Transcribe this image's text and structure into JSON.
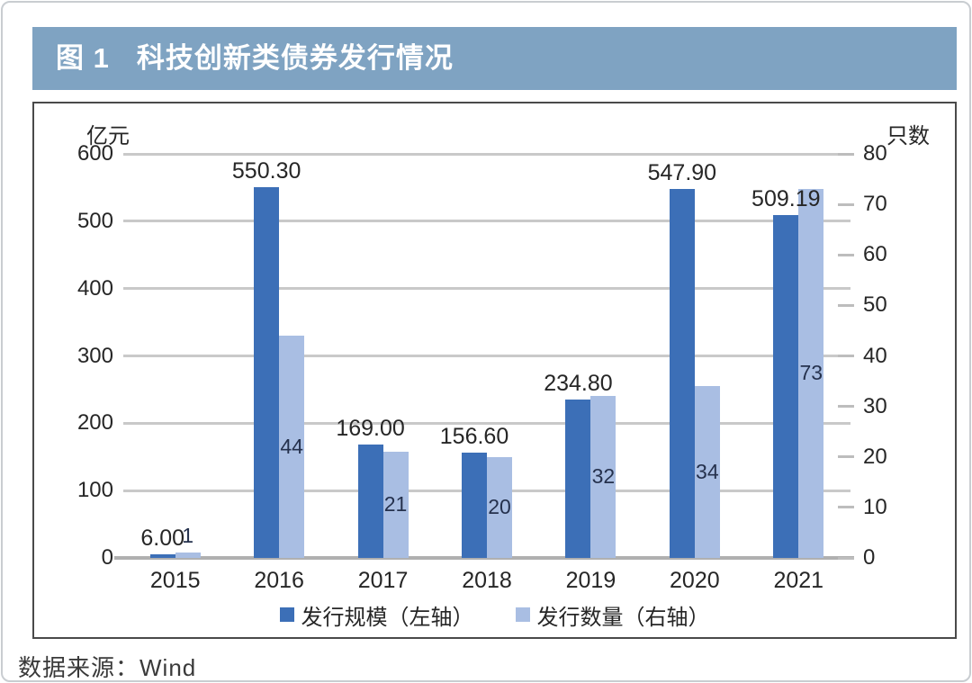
{
  "header": {
    "figure_label": "图 1",
    "title": "科技创新类债券发行情况"
  },
  "source": "数据来源：Wind",
  "colors": {
    "header_bg": "#7FA3C2",
    "bar_dark": "#3C6FB7",
    "bar_light": "#A9BEE3",
    "gridline": "#C9C9C9",
    "axis_line": "#B0B0B0",
    "text": "#262626"
  },
  "chart_data": {
    "type": "bar",
    "title": "科技创新类债券发行情况",
    "categories": [
      "2015",
      "2016",
      "2017",
      "2018",
      "2019",
      "2020",
      "2021"
    ],
    "series": [
      {
        "name": "发行规模（左轴）",
        "axis": "left",
        "color": "#3C6FB7",
        "values": [
          6.0,
          550.3,
          169.0,
          156.6,
          234.8,
          547.9,
          509.19
        ],
        "display": [
          "6.00",
          "550.30",
          "169.00",
          "156.60",
          "234.80",
          "547.90",
          "509.19"
        ]
      },
      {
        "name": "发行数量（右轴）",
        "axis": "right",
        "color": "#A9BEE3",
        "values": [
          1,
          44,
          21,
          20,
          32,
          34,
          73
        ],
        "display": [
          "1",
          "44",
          "21",
          "20",
          "32",
          "34",
          "73"
        ]
      }
    ],
    "left_axis": {
      "label": "亿元",
      "min": 0,
      "max": 600,
      "ticks": [
        600,
        500,
        400,
        300,
        200,
        100,
        0
      ]
    },
    "right_axis": {
      "label": "只数",
      "min": 0,
      "max": 80,
      "ticks": [
        80,
        70,
        60,
        50,
        40,
        30,
        20,
        10,
        0
      ]
    },
    "grid": true,
    "legend_position": "bottom"
  }
}
